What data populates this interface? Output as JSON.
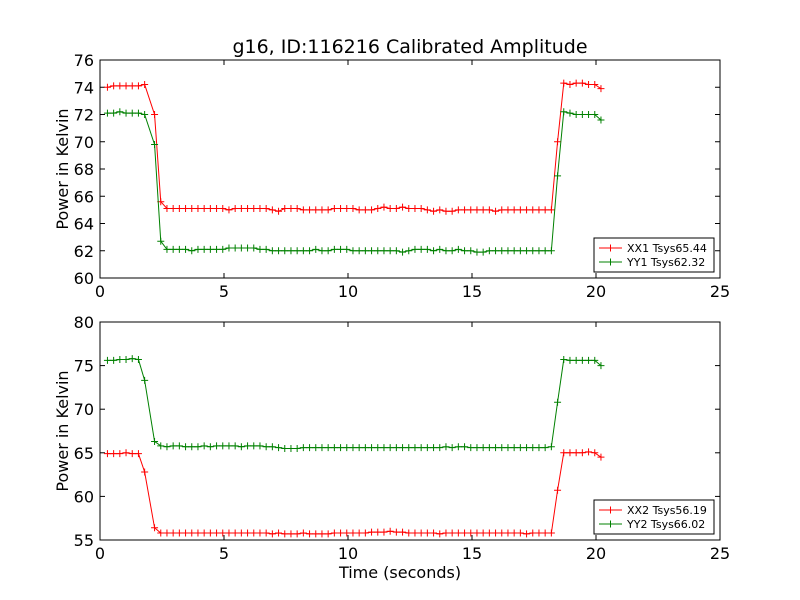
{
  "colors": {
    "XX": "#ff0000",
    "YY": "#008000"
  },
  "chart_data": [
    {
      "type": "line",
      "title": "g16, ID:116216 Calibrated Amplitude",
      "xlabel": "",
      "ylabel": "Power in Kelvin",
      "xlim": [
        0,
        25
      ],
      "ylim": [
        60,
        76
      ],
      "xticks": [
        0,
        5,
        10,
        15,
        20,
        25
      ],
      "yticks": [
        60,
        62,
        64,
        66,
        68,
        70,
        72,
        74,
        76
      ],
      "grid": false,
      "legend": "bottom-right",
      "x": [
        0.3,
        0.55,
        0.8,
        1.05,
        1.3,
        1.55,
        1.8,
        2.2,
        2.45,
        2.7,
        2.95,
        3.2,
        3.45,
        3.7,
        3.95,
        4.2,
        4.45,
        4.7,
        4.95,
        5.2,
        5.45,
        5.7,
        5.95,
        6.2,
        6.45,
        6.7,
        6.95,
        7.2,
        7.45,
        7.7,
        7.95,
        8.2,
        8.45,
        8.7,
        8.95,
        9.2,
        9.45,
        9.7,
        9.95,
        10.2,
        10.45,
        10.7,
        10.95,
        11.2,
        11.45,
        11.7,
        11.95,
        12.2,
        12.45,
        12.7,
        12.95,
        13.2,
        13.45,
        13.7,
        13.95,
        14.2,
        14.45,
        14.7,
        14.95,
        15.2,
        15.45,
        15.7,
        15.95,
        16.2,
        16.45,
        16.7,
        16.95,
        17.2,
        17.45,
        17.7,
        17.95,
        18.2,
        18.45,
        18.7,
        18.95,
        19.2,
        19.45,
        19.7,
        19.95,
        20.2
      ],
      "series": [
        {
          "name": "XX1 Tsys65.44",
          "color": "#ff0000",
          "values": [
            74.0,
            74.1,
            74.1,
            74.1,
            74.1,
            74.1,
            74.2,
            72.0,
            65.6,
            65.1,
            65.1,
            65.1,
            65.1,
            65.1,
            65.1,
            65.1,
            65.1,
            65.1,
            65.1,
            65.0,
            65.1,
            65.1,
            65.1,
            65.1,
            65.1,
            65.1,
            65.0,
            64.9,
            65.1,
            65.1,
            65.1,
            65.0,
            65.0,
            65.0,
            65.0,
            65.0,
            65.1,
            65.1,
            65.1,
            65.1,
            65.0,
            65.0,
            65.0,
            65.1,
            65.2,
            65.1,
            65.1,
            65.2,
            65.1,
            65.1,
            65.1,
            65.0,
            64.9,
            65.0,
            64.9,
            64.9,
            65.0,
            65.0,
            65.0,
            65.0,
            65.0,
            65.0,
            64.9,
            65.0,
            65.0,
            65.0,
            65.0,
            65.0,
            65.0,
            65.0,
            65.0,
            65.0,
            70.0,
            74.3,
            74.2,
            74.3,
            74.3,
            74.2,
            74.2,
            73.9
          ]
        },
        {
          "name": "YY1 Tsys62.32",
          "color": "#008000",
          "values": [
            72.1,
            72.1,
            72.2,
            72.1,
            72.1,
            72.1,
            72.0,
            69.8,
            62.7,
            62.1,
            62.1,
            62.1,
            62.1,
            62.0,
            62.1,
            62.1,
            62.1,
            62.1,
            62.1,
            62.2,
            62.2,
            62.2,
            62.2,
            62.2,
            62.1,
            62.1,
            62.0,
            62.0,
            62.0,
            62.0,
            62.0,
            62.0,
            62.0,
            62.1,
            62.0,
            62.0,
            62.1,
            62.1,
            62.1,
            62.0,
            62.0,
            62.0,
            62.0,
            62.0,
            62.0,
            62.0,
            62.0,
            61.9,
            62.0,
            62.1,
            62.1,
            62.1,
            62.0,
            62.1,
            62.0,
            62.0,
            62.1,
            62.0,
            62.0,
            61.9,
            61.9,
            62.0,
            62.0,
            62.0,
            62.0,
            62.0,
            62.0,
            62.0,
            62.0,
            62.0,
            62.0,
            62.0,
            67.5,
            72.2,
            72.1,
            72.0,
            72.0,
            72.0,
            72.0,
            71.6
          ]
        }
      ]
    },
    {
      "type": "line",
      "title": "",
      "xlabel": "Time (seconds)",
      "ylabel": "Power in Kelvin",
      "xlim": [
        0,
        25
      ],
      "ylim": [
        55,
        80
      ],
      "xticks": [
        0,
        5,
        10,
        15,
        20,
        25
      ],
      "yticks": [
        55,
        60,
        65,
        70,
        75,
        80
      ],
      "grid": false,
      "legend": "bottom-right",
      "x": [
        0.3,
        0.55,
        0.8,
        1.05,
        1.3,
        1.55,
        1.8,
        2.2,
        2.45,
        2.7,
        2.95,
        3.2,
        3.45,
        3.7,
        3.95,
        4.2,
        4.45,
        4.7,
        4.95,
        5.2,
        5.45,
        5.7,
        5.95,
        6.2,
        6.45,
        6.7,
        6.95,
        7.2,
        7.45,
        7.7,
        7.95,
        8.2,
        8.45,
        8.7,
        8.95,
        9.2,
        9.45,
        9.7,
        9.95,
        10.2,
        10.45,
        10.7,
        10.95,
        11.2,
        11.45,
        11.7,
        11.95,
        12.2,
        12.45,
        12.7,
        12.95,
        13.2,
        13.45,
        13.7,
        13.95,
        14.2,
        14.45,
        14.7,
        14.95,
        15.2,
        15.45,
        15.7,
        15.95,
        16.2,
        16.45,
        16.7,
        16.95,
        17.2,
        17.45,
        17.7,
        17.95,
        18.2,
        18.45,
        18.7,
        18.95,
        19.2,
        19.45,
        19.7,
        19.95,
        20.2
      ],
      "series": [
        {
          "name": "XX2 Tsys56.19",
          "color": "#ff0000",
          "values": [
            64.9,
            64.9,
            64.9,
            65.0,
            64.9,
            64.9,
            62.8,
            56.4,
            55.8,
            55.8,
            55.8,
            55.8,
            55.8,
            55.8,
            55.8,
            55.8,
            55.8,
            55.8,
            55.8,
            55.8,
            55.8,
            55.8,
            55.8,
            55.8,
            55.8,
            55.8,
            55.7,
            55.8,
            55.7,
            55.7,
            55.7,
            55.8,
            55.7,
            55.7,
            55.7,
            55.7,
            55.8,
            55.8,
            55.8,
            55.8,
            55.8,
            55.8,
            55.9,
            55.9,
            55.9,
            56.0,
            55.9,
            55.9,
            55.8,
            55.8,
            55.8,
            55.8,
            55.8,
            55.7,
            55.8,
            55.8,
            55.8,
            55.8,
            55.8,
            55.8,
            55.8,
            55.8,
            55.8,
            55.8,
            55.8,
            55.8,
            55.8,
            55.7,
            55.8,
            55.8,
            55.8,
            55.8,
            60.7,
            65.0,
            65.0,
            65.0,
            65.0,
            65.1,
            65.0,
            64.5
          ]
        },
        {
          "name": "YY2 Tsys66.02",
          "color": "#008000",
          "values": [
            75.6,
            75.6,
            75.7,
            75.7,
            75.8,
            75.7,
            73.3,
            66.3,
            65.8,
            65.7,
            65.8,
            65.8,
            65.7,
            65.7,
            65.7,
            65.8,
            65.7,
            65.8,
            65.8,
            65.8,
            65.8,
            65.7,
            65.8,
            65.8,
            65.8,
            65.7,
            65.7,
            65.6,
            65.5,
            65.5,
            65.5,
            65.6,
            65.6,
            65.6,
            65.6,
            65.6,
            65.6,
            65.6,
            65.6,
            65.6,
            65.6,
            65.6,
            65.6,
            65.6,
            65.6,
            65.6,
            65.6,
            65.6,
            65.6,
            65.6,
            65.6,
            65.6,
            65.6,
            65.6,
            65.7,
            65.6,
            65.7,
            65.7,
            65.6,
            65.6,
            65.6,
            65.6,
            65.6,
            65.6,
            65.6,
            65.6,
            65.6,
            65.6,
            65.6,
            65.6,
            65.6,
            65.7,
            70.8,
            75.7,
            75.6,
            75.6,
            75.6,
            75.6,
            75.6,
            75.0
          ]
        }
      ]
    }
  ]
}
